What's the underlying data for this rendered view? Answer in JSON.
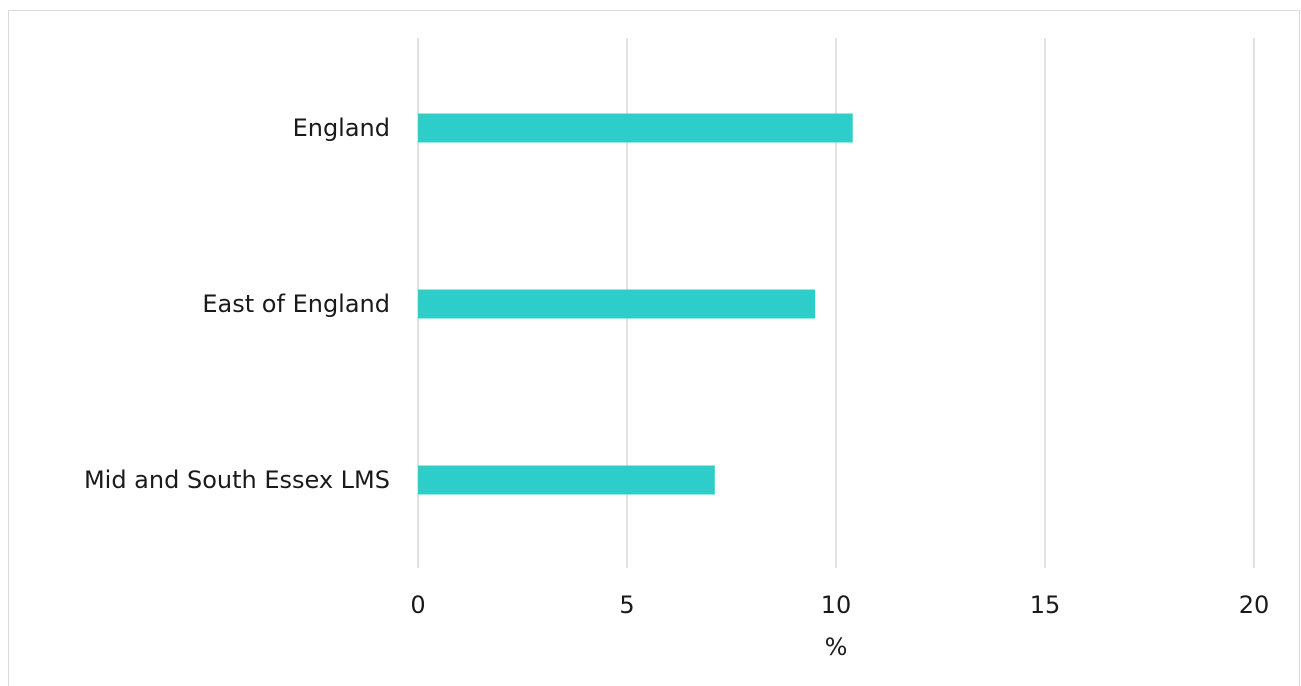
{
  "chart_data": {
    "type": "bar",
    "orientation": "horizontal",
    "categories": [
      "England",
      "East of England",
      "Mid and South Essex LMS"
    ],
    "values": [
      10.4,
      9.5,
      7.1
    ],
    "xlabel": "%",
    "ylabel": "",
    "xlim": [
      0,
      20
    ],
    "xticks": [
      0,
      5,
      10,
      15,
      20
    ],
    "grid": "vertical",
    "bar_color": "#2ecdc9",
    "legend": "none"
  }
}
